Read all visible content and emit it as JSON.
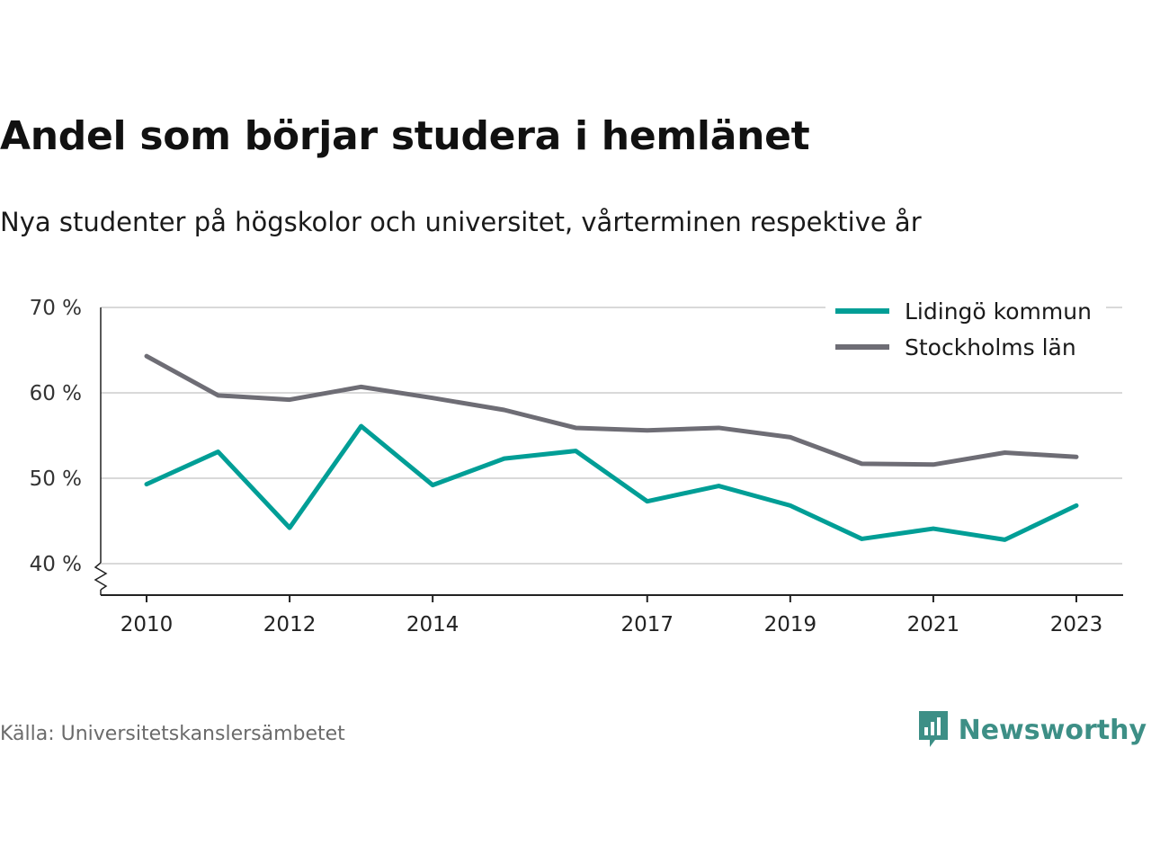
{
  "title": "Andel som börjar studera i hemlänet",
  "subtitle": "Nya studenter på högskolor och universitet, vårterminen respektive år",
  "source": "Källa: Universitetskanslersämbetet",
  "brand": "Newsworthy",
  "colors": {
    "lidingo": "#009e96",
    "stockholm": "#6e6d75",
    "grid": "#d9d9d9",
    "axis": "#222222",
    "brand": "#3d8f86"
  },
  "chart_data": {
    "type": "line",
    "title": "Andel som börjar studera i hemlänet",
    "subtitle": "Nya studenter på högskolor och universitet, vårterminen respektive år",
    "xlabel": "",
    "ylabel": "",
    "x": [
      2010,
      2011,
      2012,
      2013,
      2014,
      2015,
      2016,
      2017,
      2018,
      2019,
      2020,
      2021,
      2022,
      2023
    ],
    "x_tick_labels": [
      "2010",
      "2012",
      "2014",
      "2017",
      "2019",
      "2021",
      "2023"
    ],
    "y_tick_labels": [
      "70 %",
      "60 %",
      "50 %",
      "40 %"
    ],
    "y_ticks": [
      70,
      60,
      50,
      40
    ],
    "ylim": [
      36.3,
      70
    ],
    "y_axis_break": true,
    "grid": true,
    "legend_position": "top-right",
    "series": [
      {
        "name": "Lidingö kommun",
        "values": [
          49.3,
          53.1,
          44.2,
          56.1,
          49.2,
          52.3,
          53.2,
          47.3,
          49.1,
          46.8,
          42.9,
          44.1,
          42.8,
          46.8
        ]
      },
      {
        "name": "Stockholms län",
        "values": [
          64.3,
          59.7,
          59.2,
          60.7,
          59.4,
          58.0,
          55.9,
          55.6,
          55.9,
          54.8,
          51.7,
          51.6,
          53.0,
          52.5
        ]
      }
    ]
  }
}
